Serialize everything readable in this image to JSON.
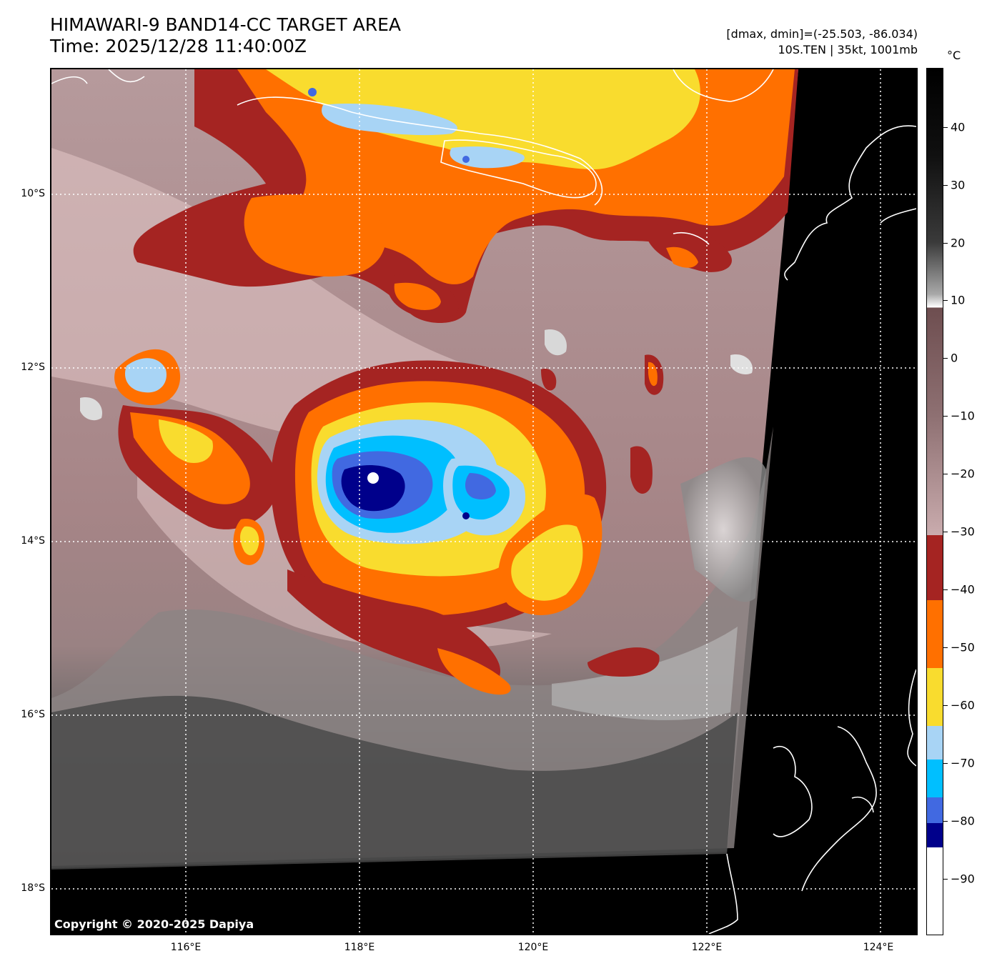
{
  "header": {
    "title_line1": "HIMAWARI-9 BAND14-CC TARGET AREA",
    "title_line2": "Time: 2025/12/28 11:40:00Z",
    "range_line": "[dmax, dmin]=(-25.503, -86.034)",
    "storm_line": "10S.TEN | 35kt, 1001mb"
  },
  "map": {
    "lat_labels": [
      "10°S",
      "12°S",
      "14°S",
      "16°S",
      "18°S"
    ],
    "lon_labels": [
      "116°E",
      "118°E",
      "120°E",
      "122°E",
      "124°E"
    ],
    "lat_range": [
      -18.5,
      -8.5
    ],
    "lon_range": [
      114.5,
      124.5
    ],
    "gridlines": "dotted white",
    "copyright": "Copyright © 2020-2025 Dapiya"
  },
  "colorbar": {
    "unit": "°C",
    "ticks": [
      "40",
      "30",
      "20",
      "10",
      "0",
      "−10",
      "−20",
      "−30",
      "−40",
      "−50",
      "−60",
      "−70",
      "−80",
      "−90"
    ],
    "range": [
      -100,
      50
    ],
    "bands": [
      {
        "from": -85,
        "to": -81,
        "color": "#00008b"
      },
      {
        "from": -81,
        "to": -76,
        "color": "#4169e1"
      },
      {
        "from": -76,
        "to": -71,
        "color": "#00bfff"
      },
      {
        "from": -71,
        "to": -65,
        "color": "#a8d4f5"
      },
      {
        "from": -65,
        "to": -54,
        "color": "#f9dc2e"
      },
      {
        "from": -54,
        "to": -42,
        "color": "#ff7000"
      },
      {
        "from": -42,
        "to": -31,
        "color": "#a52422"
      }
    ]
  }
}
